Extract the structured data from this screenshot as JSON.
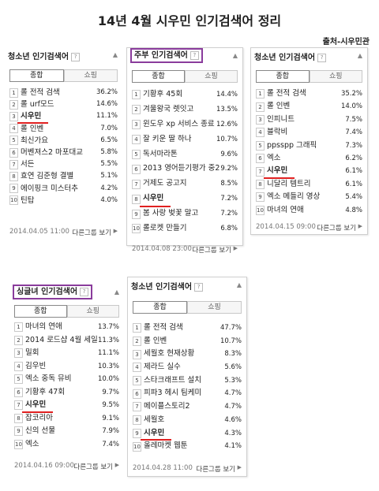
{
  "title": "14년 4월 시우민 인기검색어 정리",
  "source": "출처-시우민관",
  "tab_labels": [
    "종합",
    "쇼핑"
  ],
  "more_label": "다른그룹 보기",
  "panels": [
    {
      "title": "청소년 인기검색어",
      "date": "2014.04.05 11:00",
      "highlight": 3,
      "items": [
        {
          "rank": "1",
          "word": "롤 전적 검색",
          "value": "36.2%"
        },
        {
          "rank": "2",
          "word": "롤 urf모드",
          "value": "14.6%"
        },
        {
          "rank": "3",
          "word": "시우민",
          "value": "11.1%"
        },
        {
          "rank": "4",
          "word": "롤 인벤",
          "value": "7.0%"
        },
        {
          "rank": "5",
          "word": "최신가요",
          "value": "6.5%"
        },
        {
          "rank": "6",
          "word": "머벤져스2 마포대교",
          "value": "5.8%"
        },
        {
          "rank": "7",
          "word": "서든",
          "value": "5.5%"
        },
        {
          "rank": "8",
          "word": "효연 김준형 결별",
          "value": "5.1%"
        },
        {
          "rank": "9",
          "word": "에이핑크 미스터추",
          "value": "4.2%"
        },
        {
          "rank": "10",
          "word": "틴탑",
          "value": "4.0%"
        }
      ]
    },
    {
      "title": "주부 인기검색어",
      "date": "2014.04.08 23:00",
      "highlight": 8,
      "items": [
        {
          "rank": "1",
          "word": "기황후 45회",
          "value": "14.4%"
        },
        {
          "rank": "2",
          "word": "겨울왕국 렛잇고",
          "value": "13.5%"
        },
        {
          "rank": "3",
          "word": "윈도우 xp 서비스 종료",
          "value": "12.6%"
        },
        {
          "rank": "4",
          "word": "잘 키운 딸 하나",
          "value": "10.7%"
        },
        {
          "rank": "5",
          "word": "독서마라톤",
          "value": "9.6%"
        },
        {
          "rank": "6",
          "word": "2013 영어듣기평가 중2",
          "value": "9.2%"
        },
        {
          "rank": "7",
          "word": "거제도 공고지",
          "value": "8.5%"
        },
        {
          "rank": "8",
          "word": "시우민",
          "value": "7.2%"
        },
        {
          "rank": "9",
          "word": "봄 사랑 벚꽃 말고",
          "value": "7.2%"
        },
        {
          "rank": "10",
          "word": "롤로켓 만들기",
          "value": "6.8%"
        }
      ]
    },
    {
      "title": "청소년 인기검색어",
      "date": "2014.04.15 09:00",
      "highlight": 7,
      "items": [
        {
          "rank": "1",
          "word": "롤 전적 검색",
          "value": "35.2%"
        },
        {
          "rank": "2",
          "word": "롤 인벤",
          "value": "14.0%"
        },
        {
          "rank": "3",
          "word": "인피니트",
          "value": "7.5%"
        },
        {
          "rank": "4",
          "word": "블락비",
          "value": "7.4%"
        },
        {
          "rank": "5",
          "word": "ppsspp 그래픽",
          "value": "7.3%"
        },
        {
          "rank": "6",
          "word": "엑소",
          "value": "6.2%"
        },
        {
          "rank": "7",
          "word": "시우민",
          "value": "6.1%"
        },
        {
          "rank": "8",
          "word": "니달리 템트리",
          "value": "6.1%"
        },
        {
          "rank": "9",
          "word": "엑소 메들리 영상",
          "value": "5.4%"
        },
        {
          "rank": "10",
          "word": "마녀의 연애",
          "value": "4.8%"
        }
      ]
    },
    {
      "title": "싱글녀 인기검색어",
      "date": "2014.04.16 09:00",
      "highlight": 7,
      "items": [
        {
          "rank": "1",
          "word": "마녀의 연애",
          "value": "13.7%"
        },
        {
          "rank": "2",
          "word": "2014 로드샵 4월 세일",
          "value": "11.3%"
        },
        {
          "rank": "3",
          "word": "밀회",
          "value": "11.1%"
        },
        {
          "rank": "4",
          "word": "김우빈",
          "value": "10.3%"
        },
        {
          "rank": "5",
          "word": "엑소 중독 뮤비",
          "value": "10.0%"
        },
        {
          "rank": "6",
          "word": "기황후 47회",
          "value": "9.7%"
        },
        {
          "rank": "7",
          "word": "시우민",
          "value": "9.5%"
        },
        {
          "rank": "8",
          "word": "잡코리아",
          "value": "9.1%"
        },
        {
          "rank": "9",
          "word": "신의 선물",
          "value": "7.9%"
        },
        {
          "rank": "10",
          "word": "엑소",
          "value": "7.4%"
        }
      ]
    },
    {
      "title": "청소년 인기검색어",
      "date": "2014.04.28 11:00",
      "highlight": 9,
      "items": [
        {
          "rank": "1",
          "word": "롤 전적 검색",
          "value": "47.7%"
        },
        {
          "rank": "2",
          "word": "롤 인벤",
          "value": "10.7%"
        },
        {
          "rank": "3",
          "word": "세월호 현재상황",
          "value": "8.3%"
        },
        {
          "rank": "4",
          "word": "제라드 실수",
          "value": "5.6%"
        },
        {
          "rank": "5",
          "word": "스타크래프트 설치",
          "value": "5.3%"
        },
        {
          "rank": "6",
          "word": "피파3 헤시 팀케미",
          "value": "4.7%"
        },
        {
          "rank": "7",
          "word": "메이플스토리2",
          "value": "4.7%"
        },
        {
          "rank": "8",
          "word": "세월호",
          "value": "4.6%"
        },
        {
          "rank": "9",
          "word": "시우민",
          "value": "4.3%"
        },
        {
          "rank": "10",
          "word": "올레마켓 웹툰",
          "value": "4.1%"
        }
      ]
    }
  ]
}
